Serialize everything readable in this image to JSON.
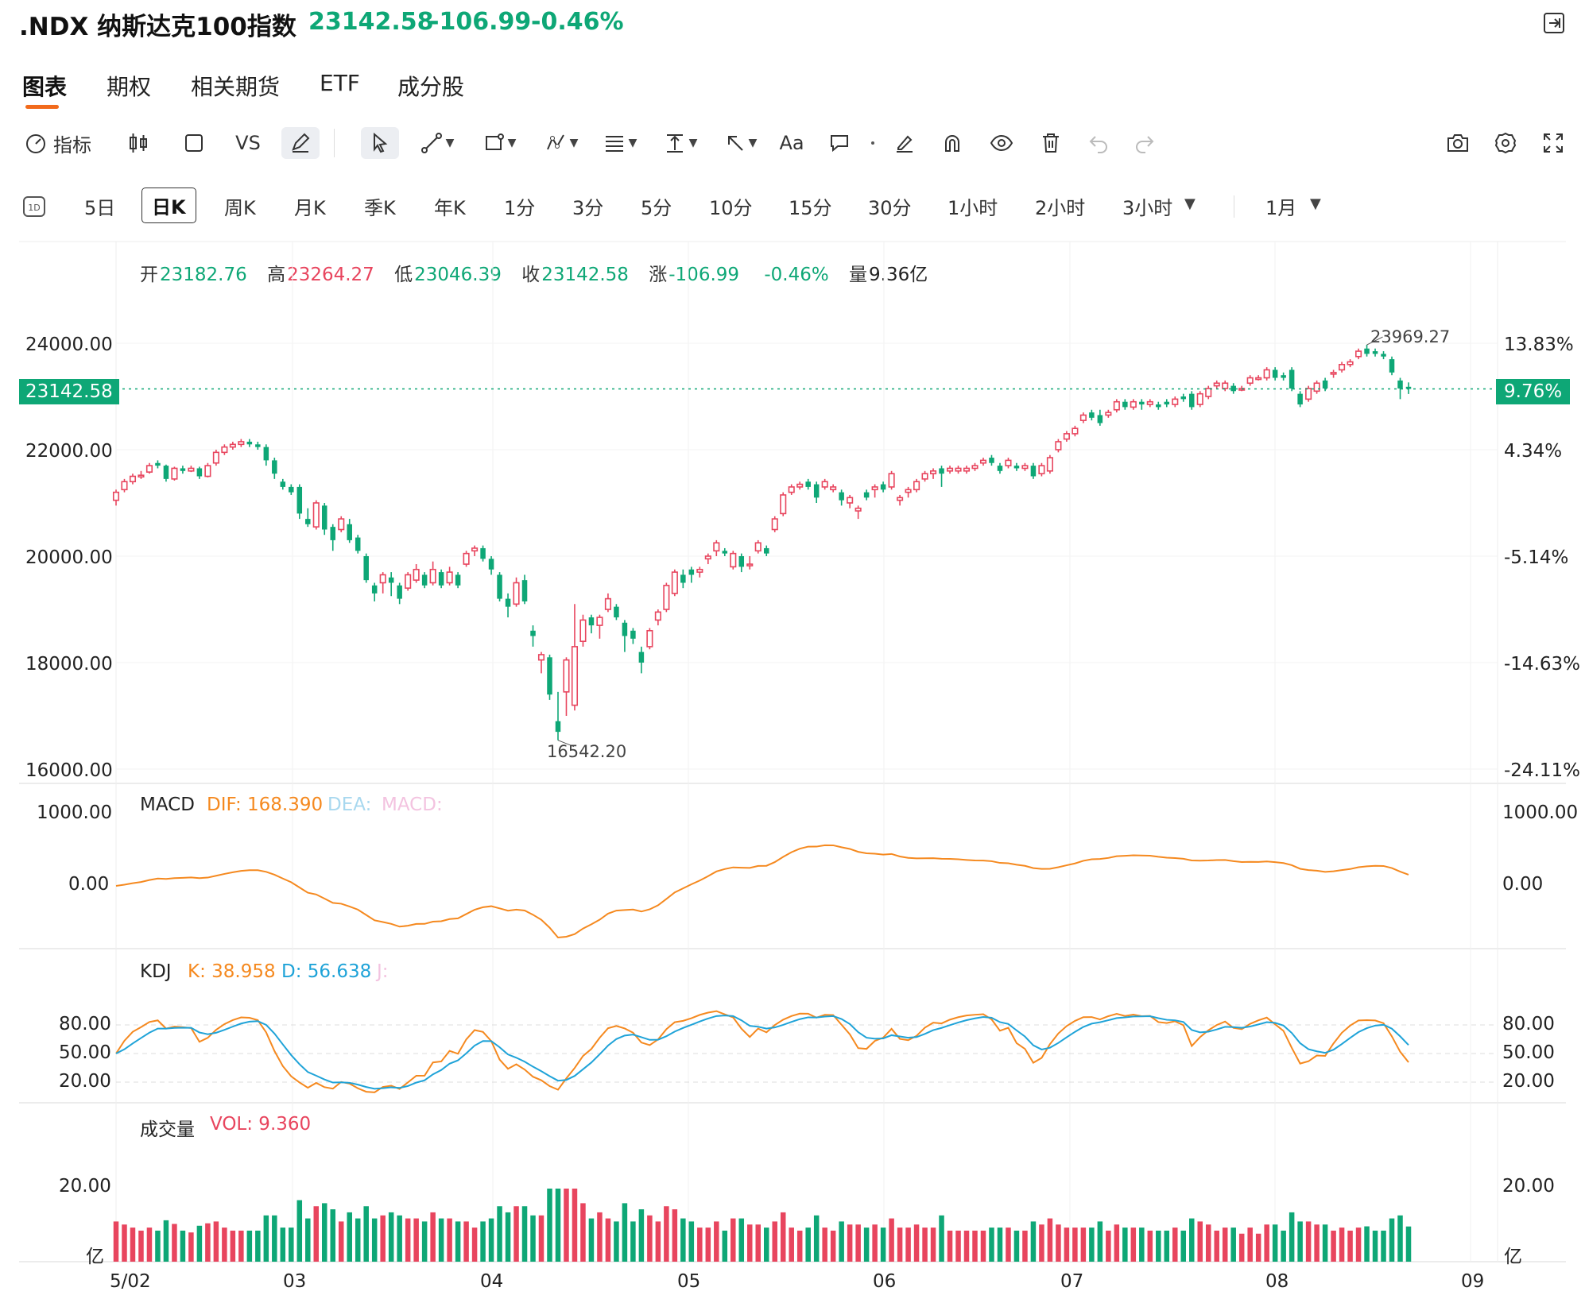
{
  "header": {
    "symbol": ".NDX 纳斯达克100指数",
    "last": "23142.58",
    "change": "-106.99",
    "change_pct": "-0.46%",
    "exit_icon": "exit-icon"
  },
  "colors": {
    "up": "#e8455e",
    "down": "#0ea776",
    "accent": "#f26a1b",
    "dif": "#f5891f",
    "kdj_d": "#1fa3d8"
  },
  "tabs": [
    "图表",
    "期权",
    "相关期货",
    "ETF",
    "成分股"
  ],
  "toolbar": {
    "indicators": "指标",
    "vs": "VS",
    "font": "Aa",
    "icons": [
      "gauge-icon",
      "candlestick-icon",
      "square-icon",
      "pencil-icon",
      "cursor-icon",
      "line-icon",
      "rect-tool-icon",
      "pattern-icon",
      "fib-icon",
      "measure-icon",
      "arrow-icon",
      "text-icon",
      "comment-icon",
      "dot-icon",
      "eraser-icon",
      "magnet-icon",
      "eye-icon",
      "trash-icon",
      "undo-icon",
      "redo-icon",
      "camera-icon",
      "settings-icon",
      "fullscreen-icon"
    ]
  },
  "periods": [
    "5日",
    "日K",
    "周K",
    "月K",
    "季K",
    "年K",
    "1分",
    "3分",
    "5分",
    "10分",
    "15分",
    "30分",
    "1小时",
    "2小时",
    "3小时",
    "1月"
  ],
  "ohlc": {
    "open_label": "开",
    "open": "23182.76",
    "high_label": "高",
    "high": "23264.27",
    "low_label": "低",
    "low": "23046.39",
    "close_label": "收",
    "close": "23142.58",
    "chg_label": "涨",
    "chg": "-106.99",
    "chg_pct": "-0.46%",
    "vol_label": "量",
    "vol": "9.36亿"
  },
  "price_axis": {
    "left_ticks": [
      "24000.00",
      "22000.00",
      "20000.00",
      "18000.00",
      "16000.00"
    ],
    "right_ticks": [
      "13.83%",
      "4.34%",
      "-5.14%",
      "-14.63%",
      "-24.11%"
    ],
    "current_price": "23142.58",
    "current_pct": "9.76%",
    "max_label": "23969.27",
    "min_label": "16542.20"
  },
  "macd": {
    "name": "MACD",
    "dif": "DIF: 168.390",
    "dea": "DEA:",
    "macd": "MACD:",
    "ticks": [
      "1000.00",
      "0.00"
    ],
    "right_ticks": [
      "1000.00",
      "0.00"
    ]
  },
  "kdj": {
    "name": "KDJ",
    "k": "K: 38.958",
    "d": "D: 56.638",
    "j": "J:",
    "ticks": [
      "80.00",
      "50.00",
      "20.00"
    ]
  },
  "volume": {
    "name": "成交量",
    "vol": "VOL: 9.360",
    "tick": "20.00",
    "unit": "亿"
  },
  "x_labels": [
    "5/02",
    "03",
    "04",
    "05",
    "06",
    "07",
    "08",
    "09"
  ],
  "chart_data": {
    "type": "candlestick",
    "ylim": [
      16000,
      24000
    ],
    "candles": [
      [
        21050,
        21200,
        20950,
        21250
      ],
      [
        21250,
        21400,
        21200,
        21450
      ],
      [
        21400,
        21500,
        21350,
        21550
      ],
      [
        21500,
        21520,
        21450,
        21600
      ],
      [
        21580,
        21700,
        21550,
        21750
      ],
      [
        21750,
        21700,
        21650,
        21800
      ],
      [
        21700,
        21450,
        21400,
        21720
      ],
      [
        21450,
        21650,
        21420,
        21680
      ],
      [
        21650,
        21600,
        21550,
        21700
      ],
      [
        21600,
        21650,
        21580,
        21700
      ],
      [
        21650,
        21500,
        21450,
        21680
      ],
      [
        21500,
        21700,
        21480,
        21750
      ],
      [
        21750,
        21950,
        21700,
        22000
      ],
      [
        21950,
        22050,
        21900,
        22100
      ],
      [
        22050,
        22100,
        22000,
        22150
      ],
      [
        22100,
        22150,
        22050,
        22200
      ],
      [
        22150,
        22100,
        22050,
        22200
      ],
      [
        22100,
        22050,
        22000,
        22150
      ],
      [
        22050,
        21800,
        21700,
        22100
      ],
      [
        21800,
        21550,
        21450,
        21850
      ],
      [
        21400,
        21300,
        21250,
        21450
      ],
      [
        21300,
        21200,
        21150,
        21350
      ],
      [
        21300,
        20800,
        20700,
        21350
      ],
      [
        20700,
        20600,
        20550,
        20900
      ],
      [
        20550,
        21000,
        20500,
        21050
      ],
      [
        20950,
        20500,
        20400,
        21000
      ],
      [
        20550,
        20300,
        20100,
        20600
      ],
      [
        20500,
        20700,
        20450,
        20750
      ],
      [
        20600,
        20300,
        20250,
        20700
      ],
      [
        20350,
        20100,
        20050,
        20400
      ],
      [
        20000,
        19550,
        19500,
        20050
      ],
      [
        19450,
        19300,
        19150,
        19500
      ],
      [
        19500,
        19650,
        19300,
        19700
      ],
      [
        19600,
        19500,
        19250,
        19700
      ],
      [
        19450,
        19200,
        19100,
        19500
      ],
      [
        19400,
        19650,
        19350,
        19700
      ],
      [
        19550,
        19750,
        19500,
        19850
      ],
      [
        19650,
        19450,
        19400,
        19700
      ],
      [
        19500,
        19750,
        19450,
        19900
      ],
      [
        19700,
        19450,
        19400,
        19750
      ],
      [
        19500,
        19700,
        19450,
        19800
      ],
      [
        19650,
        19450,
        19400,
        19700
      ],
      [
        19850,
        20050,
        19800,
        20100
      ],
      [
        20100,
        20150,
        20000,
        20200
      ],
      [
        20150,
        19950,
        19900,
        20200
      ],
      [
        19950,
        19750,
        19650,
        20000
      ],
      [
        19650,
        19200,
        19150,
        19700
      ],
      [
        19200,
        19050,
        18850,
        19300
      ],
      [
        19100,
        19500,
        19050,
        19600
      ],
      [
        19550,
        19150,
        19100,
        19650
      ],
      [
        18600,
        18500,
        18300,
        18700
      ],
      [
        18050,
        18150,
        17800,
        18200
      ],
      [
        18100,
        17400,
        17300,
        18150
      ],
      [
        16900,
        16700,
        16542,
        17450
      ],
      [
        17450,
        18050,
        17000,
        18100
      ],
      [
        17200,
        18300,
        17100,
        19100
      ],
      [
        18400,
        18800,
        18300,
        18900
      ],
      [
        18850,
        18700,
        18550,
        18900
      ],
      [
        18700,
        18850,
        18450,
        18900
      ],
      [
        19000,
        19200,
        18950,
        19300
      ],
      [
        19050,
        18850,
        18800,
        19100
      ],
      [
        18750,
        18500,
        18200,
        18800
      ],
      [
        18600,
        18450,
        18350,
        18650
      ],
      [
        18200,
        18000,
        17800,
        18300
      ],
      [
        18300,
        18600,
        18250,
        18650
      ],
      [
        18800,
        18950,
        18700,
        19000
      ],
      [
        19000,
        19450,
        18950,
        19500
      ],
      [
        19300,
        19700,
        19250,
        19750
      ],
      [
        19650,
        19500,
        19400,
        19750
      ],
      [
        19750,
        19650,
        19500,
        19800
      ],
      [
        19700,
        19750,
        19600,
        19800
      ],
      [
        19950,
        20000,
        19850,
        20050
      ],
      [
        20100,
        20250,
        20000,
        20300
      ],
      [
        20100,
        20050,
        20000,
        20150
      ],
      [
        19800,
        20050,
        19750,
        20100
      ],
      [
        20000,
        19800,
        19700,
        20050
      ],
      [
        19850,
        19850,
        19750,
        20000
      ],
      [
        20100,
        20250,
        20050,
        20300
      ],
      [
        20150,
        20050,
        20000,
        20200
      ],
      [
        20500,
        20700,
        20450,
        20750
      ],
      [
        20800,
        21150,
        20750,
        21200
      ],
      [
        21200,
        21300,
        21150,
        21350
      ],
      [
        21300,
        21350,
        21250,
        21400
      ],
      [
        21400,
        21300,
        21250,
        21450
      ],
      [
        21350,
        21100,
        21000,
        21400
      ],
      [
        21300,
        21400,
        21250,
        21450
      ],
      [
        21250,
        21300,
        21200,
        21350
      ],
      [
        21200,
        21050,
        20950,
        21250
      ],
      [
        21000,
        21100,
        20900,
        21150
      ],
      [
        20850,
        20900,
        20700,
        20950
      ],
      [
        21200,
        21100,
        21050,
        21250
      ],
      [
        21250,
        21300,
        21100,
        21350
      ],
      [
        21350,
        21250,
        21200,
        21400
      ],
      [
        21300,
        21550,
        21250,
        21600
      ],
      [
        21050,
        21100,
        20950,
        21150
      ],
      [
        21200,
        21250,
        21100,
        21300
      ],
      [
        21250,
        21400,
        21200,
        21450
      ],
      [
        21450,
        21550,
        21400,
        21600
      ],
      [
        21550,
        21600,
        21450,
        21650
      ],
      [
        21650,
        21550,
        21300,
        21700
      ],
      [
        21600,
        21650,
        21550,
        21700
      ],
      [
        21600,
        21650,
        21550,
        21700
      ],
      [
        21600,
        21650,
        21550,
        21700
      ],
      [
        21650,
        21700,
        21600,
        21750
      ],
      [
        21750,
        21800,
        21700,
        21850
      ],
      [
        21850,
        21750,
        21700,
        21900
      ],
      [
        21700,
        21600,
        21550,
        21750
      ],
      [
        21700,
        21800,
        21650,
        21850
      ],
      [
        21700,
        21650,
        21600,
        21750
      ],
      [
        21650,
        21700,
        21600,
        21750
      ],
      [
        21700,
        21500,
        21450,
        21750
      ],
      [
        21550,
        21700,
        21500,
        21750
      ],
      [
        21600,
        21850,
        21550,
        21900
      ],
      [
        22000,
        22150,
        21950,
        22200
      ],
      [
        22200,
        22300,
        22150,
        22350
      ],
      [
        22300,
        22400,
        22250,
        22450
      ],
      [
        22550,
        22650,
        22500,
        22700
      ],
      [
        22700,
        22600,
        22550,
        22750
      ],
      [
        22650,
        22500,
        22450,
        22750
      ],
      [
        22650,
        22700,
        22600,
        22750
      ],
      [
        22750,
        22900,
        22700,
        22950
      ],
      [
        22900,
        22800,
        22750,
        22950
      ],
      [
        22800,
        22900,
        22750,
        22950
      ],
      [
        22900,
        22850,
        22750,
        22950
      ],
      [
        22850,
        22900,
        22800,
        22950
      ],
      [
        22850,
        22800,
        22750,
        22900
      ],
      [
        22900,
        22850,
        22800,
        22950
      ],
      [
        22850,
        22950,
        22800,
        23000
      ],
      [
        23000,
        22950,
        22900,
        23050
      ],
      [
        23050,
        22800,
        22750,
        23100
      ],
      [
        22850,
        23050,
        22800,
        23100
      ],
      [
        23000,
        23150,
        22950,
        23200
      ],
      [
        23200,
        23250,
        23150,
        23300
      ],
      [
        23150,
        23250,
        23100,
        23300
      ],
      [
        23200,
        23100,
        23050,
        23250
      ],
      [
        23150,
        23150,
        23100,
        23200
      ],
      [
        23250,
        23350,
        23200,
        23400
      ],
      [
        23350,
        23350,
        23300,
        23400
      ],
      [
        23350,
        23500,
        23300,
        23550
      ],
      [
        23500,
        23350,
        23300,
        23550
      ],
      [
        23400,
        23350,
        23300,
        23450
      ],
      [
        23500,
        23150,
        23100,
        23550
      ],
      [
        23050,
        22850,
        22800,
        23100
      ],
      [
        22950,
        23150,
        22900,
        23200
      ],
      [
        23100,
        23250,
        23050,
        23300
      ],
      [
        23300,
        23150,
        23100,
        23350
      ],
      [
        23450,
        23450,
        23350,
        23500
      ],
      [
        23500,
        23600,
        23450,
        23650
      ],
      [
        23600,
        23650,
        23550,
        23700
      ],
      [
        23750,
        23850,
        23700,
        23900
      ],
      [
        23900,
        23800,
        23750,
        23970
      ],
      [
        23850,
        23800,
        23750,
        23900
      ],
      [
        23800,
        23750,
        23700,
        23850
      ],
      [
        23700,
        23450,
        23400,
        23750
      ],
      [
        23300,
        23150,
        22950,
        23350
      ],
      [
        23182,
        23142,
        23046,
        23264
      ]
    ]
  }
}
